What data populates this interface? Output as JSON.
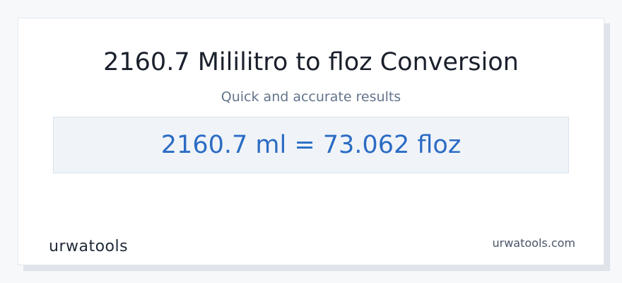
{
  "card": {
    "title": "2160.7 Mililitro to floz Conversion",
    "subtitle": "Quick and accurate results",
    "result": "2160.7 ml = 73.062 floz",
    "logo": "urwatools",
    "site": "urwatools.com"
  }
}
